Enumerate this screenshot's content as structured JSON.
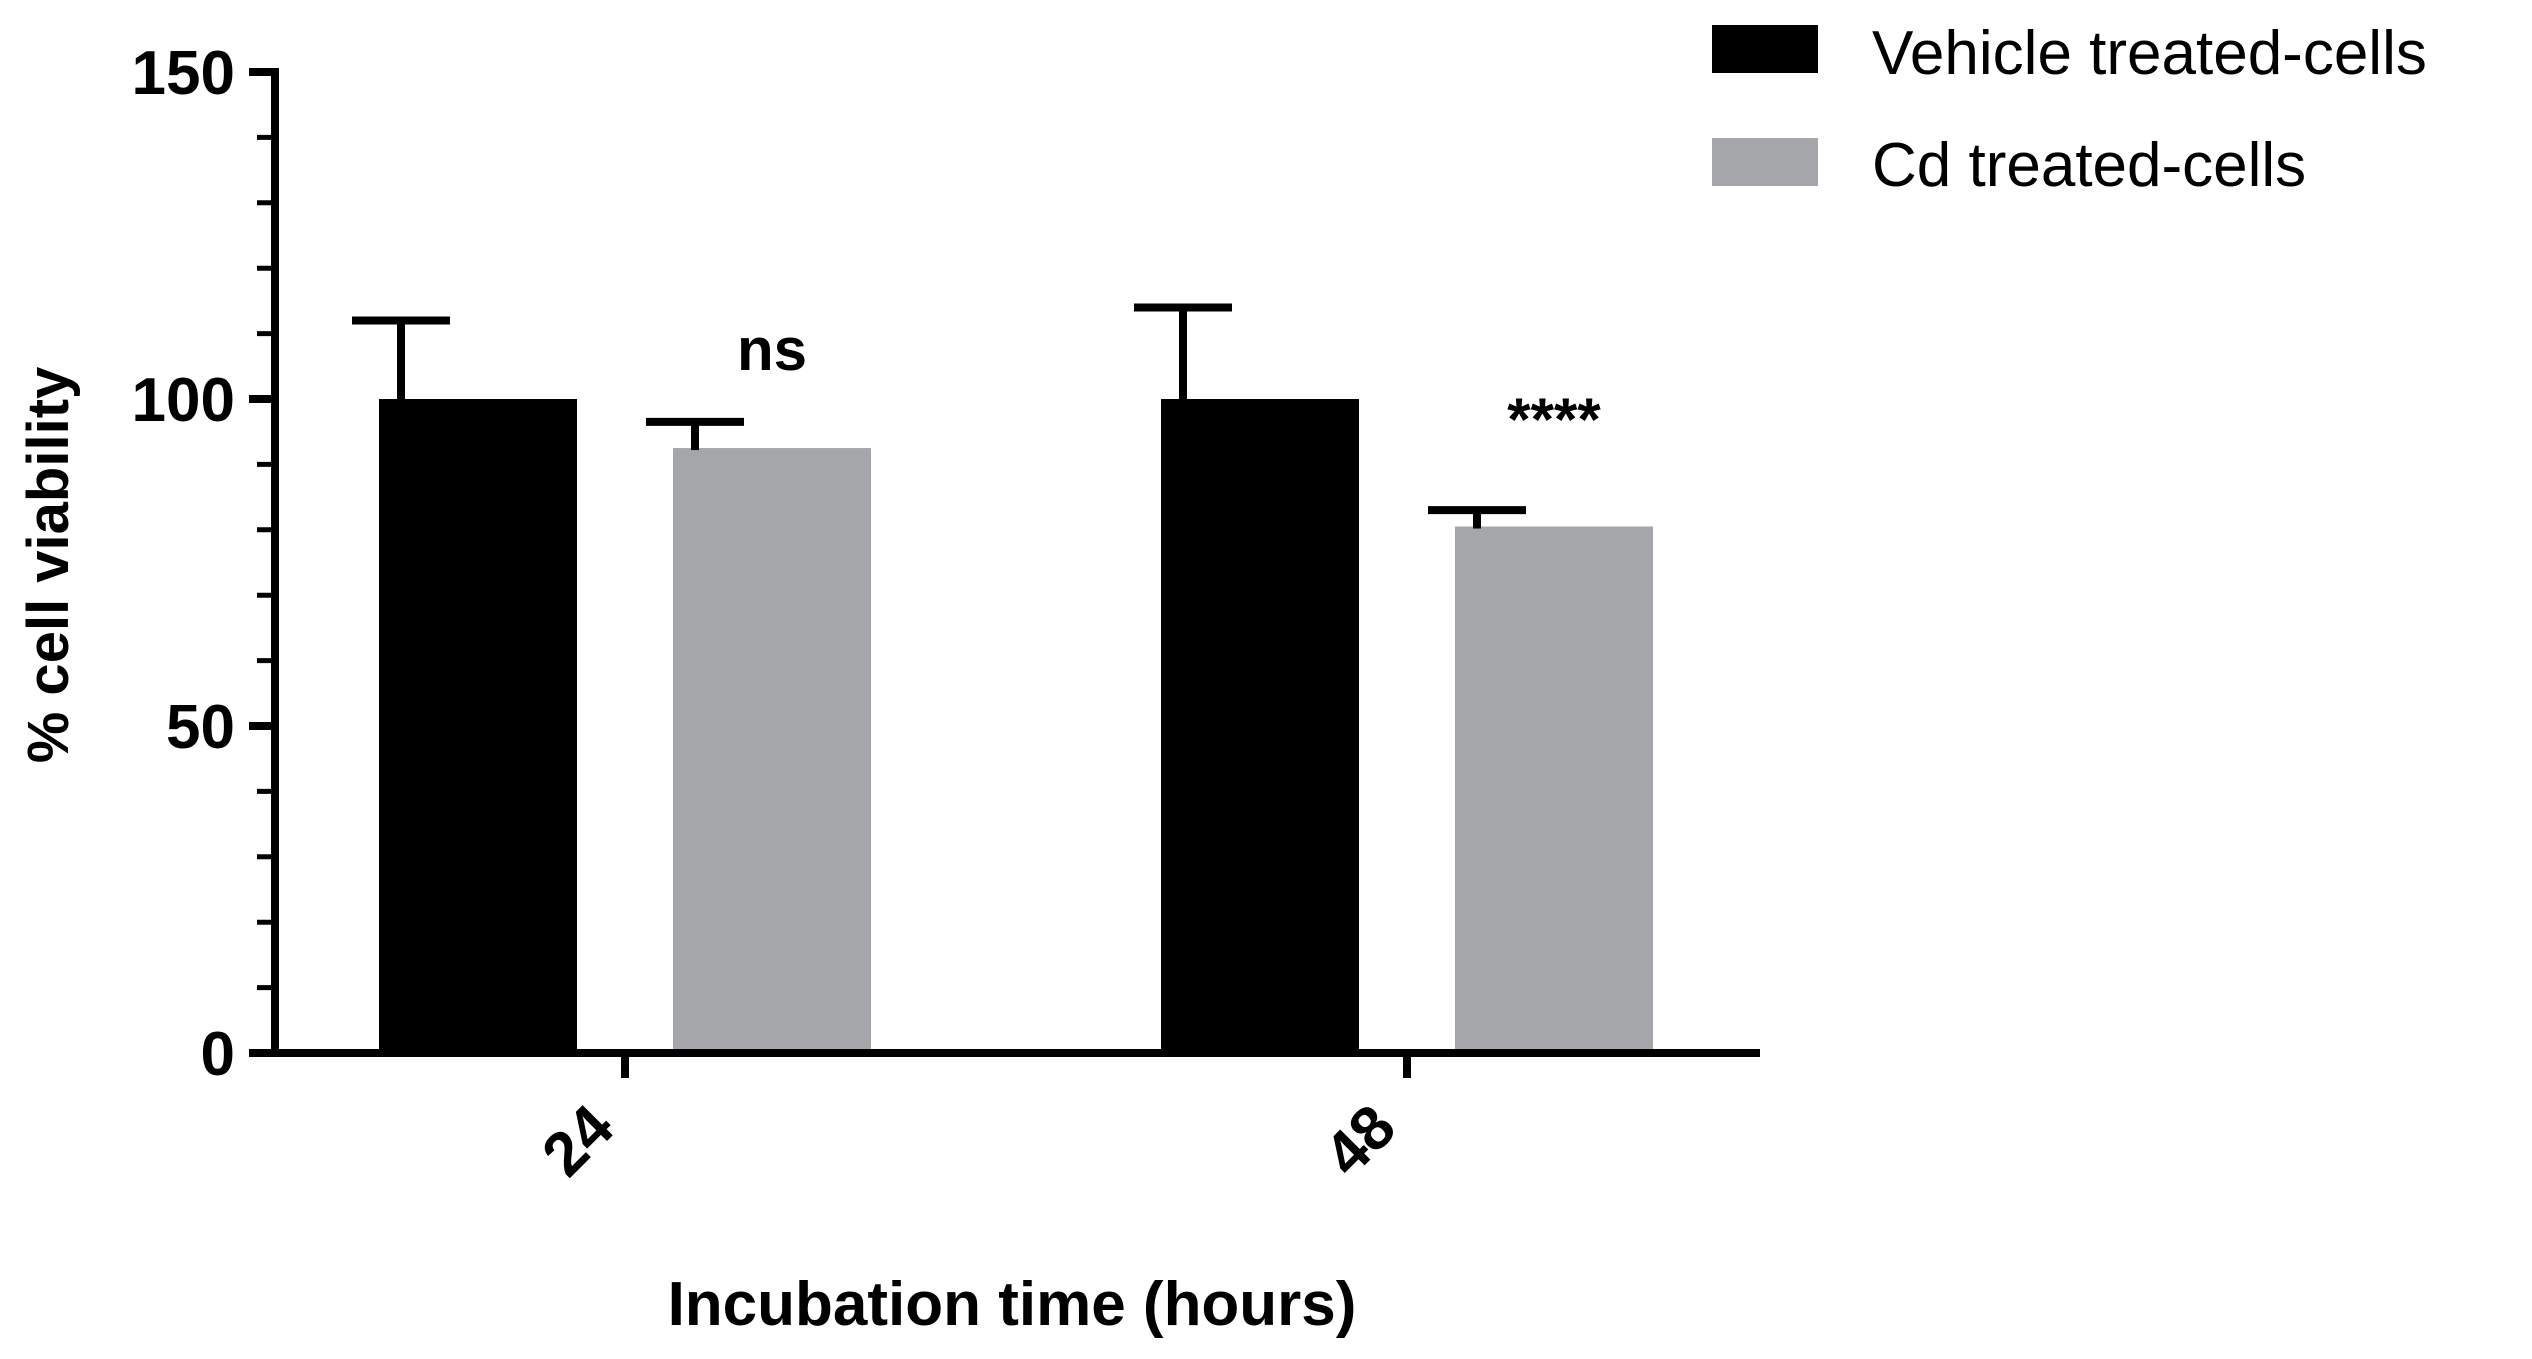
{
  "chart_data": {
    "type": "bar",
    "title": "",
    "xlabel": "Incubation time (hours)",
    "ylabel": "% cell viability",
    "categories": [
      "24",
      "48"
    ],
    "ylim": [
      0,
      150
    ],
    "yticks": [
      "0",
      "50",
      "100",
      "150"
    ],
    "series": [
      {
        "name": "Vehicle treated-cells",
        "color": "#000000",
        "values": [
          100,
          100
        ],
        "errors": [
          12,
          14
        ]
      },
      {
        "name": "Cd treated-cells",
        "color": "#a5a6aa",
        "values": [
          92.5,
          80.5
        ],
        "errors": [
          4,
          2.5
        ]
      }
    ],
    "significance": [
      "ns",
      "****"
    ],
    "legend_position": "top-right"
  }
}
